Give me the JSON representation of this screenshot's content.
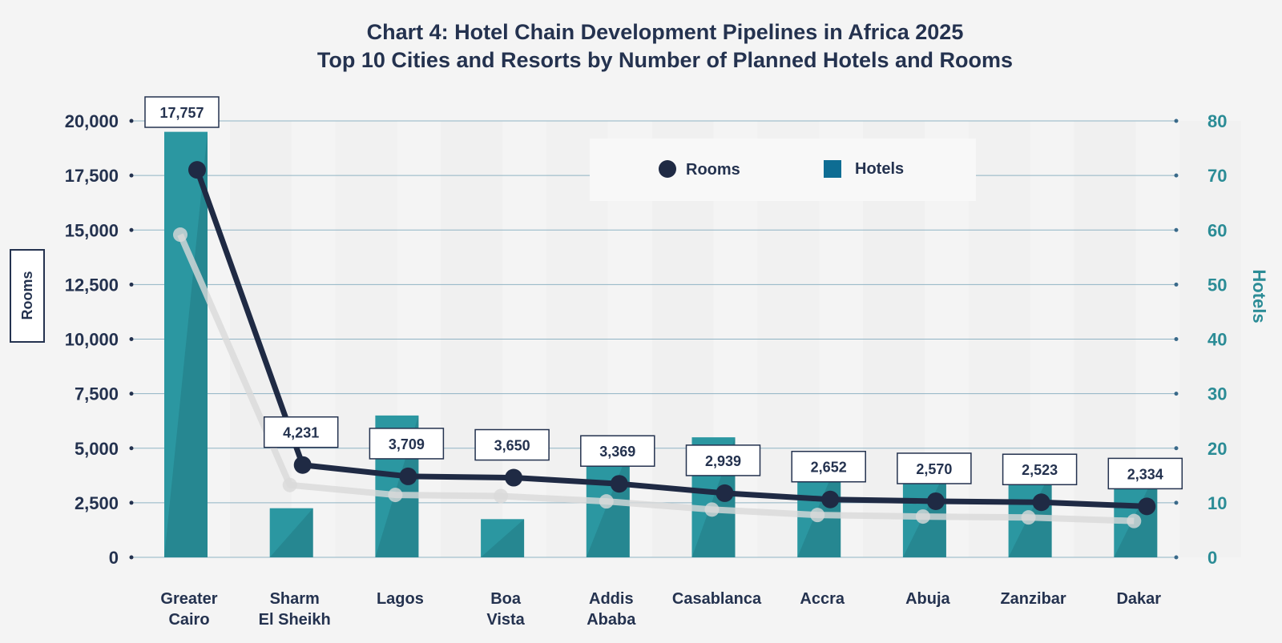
{
  "chart_data": {
    "type": "bar",
    "title": "Chart 4: Hotel Chain Development Pipelines in Africa 2025",
    "subtitle": "Top 10 Cities and Resorts by Number of Planned Hotels and Rooms",
    "categories": [
      [
        "Greater",
        "Cairo"
      ],
      [
        "Sharm",
        "El Sheikh"
      ],
      [
        "Lagos"
      ],
      [
        "Boa",
        "Vista"
      ],
      [
        "Addis",
        "Ababa"
      ],
      [
        "Casablanca"
      ],
      [
        "Accra"
      ],
      [
        "Abuja"
      ],
      [
        "Zanzibar"
      ],
      [
        "Dakar"
      ]
    ],
    "series": [
      {
        "name": "Rooms",
        "type": "line",
        "axis": "left",
        "values": [
          17757,
          4231,
          3709,
          3650,
          3369,
          2939,
          2652,
          2570,
          2523,
          2334
        ],
        "labels": [
          "17,757",
          "4,231",
          "3,709",
          "3,650",
          "3,369",
          "2,939",
          "2,652",
          "2,570",
          "2,523",
          "2,334"
        ],
        "color": "#1f2a44"
      },
      {
        "name": "Hotels",
        "type": "bar",
        "axis": "right",
        "values": [
          78,
          9,
          26,
          7,
          20,
          22,
          19,
          16,
          16,
          16
        ],
        "color": "#2b97a1"
      }
    ],
    "ylabel": "Rooms",
    "y2label": "Hotels",
    "ylim": [
      0,
      20000
    ],
    "y2lim": [
      0,
      80
    ],
    "yticks": [
      "0",
      "2,500",
      "5,000",
      "7,500",
      "10,000",
      "12,500",
      "15,000",
      "17,500",
      "20,000"
    ],
    "y2ticks": [
      "0",
      "10",
      "20",
      "30",
      "40",
      "50",
      "60",
      "70",
      "80"
    ],
    "legend": [
      "Rooms",
      "Hotels"
    ],
    "legend_position": "top-right",
    "colors": {
      "rooms": "#1f2a44",
      "hotels": "#2b97a1",
      "hotels_legend": "#0e6d93",
      "shadow": "#d9d9d9",
      "grid": "#8fb3c4",
      "axis_right": "#2b8c96"
    }
  }
}
